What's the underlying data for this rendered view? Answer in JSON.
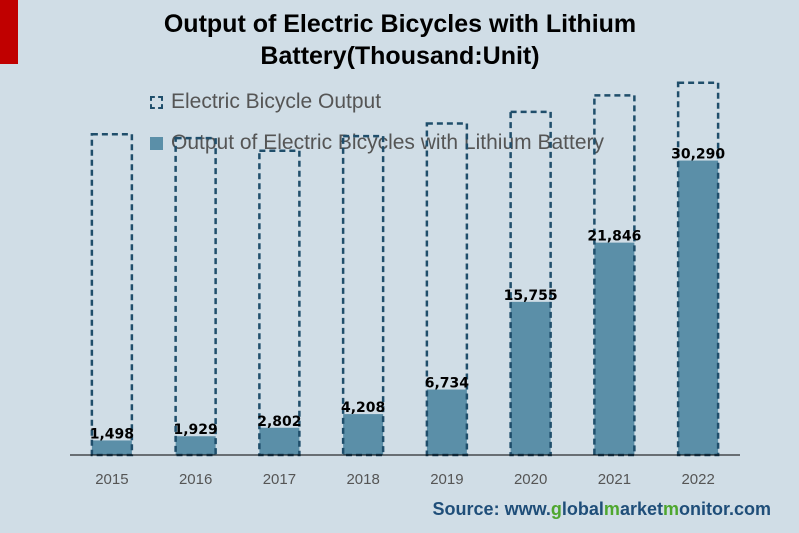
{
  "title": "Output of Electric Bicycles with Lithium Battery(Thousand:Unit)",
  "source": {
    "prefix": "Source: www.",
    "parts": [
      {
        "text": "g",
        "highlight": true
      },
      {
        "text": "lobal",
        "highlight": false
      },
      {
        "text": "m",
        "highlight": true
      },
      {
        "text": "arket",
        "highlight": false
      },
      {
        "text": "m",
        "highlight": true
      },
      {
        "text": "onitor.com",
        "highlight": false
      }
    ]
  },
  "colors": {
    "accent": "#c00000",
    "outline": "#1f4e6b",
    "fill": "#5b8fa8",
    "background": "#d0dde6",
    "source": "#1f4e79",
    "source_highlight": "#4ea72e"
  },
  "chart_data": {
    "type": "bar",
    "categories": [
      "2015",
      "2016",
      "2017",
      "2018",
      "2019",
      "2020",
      "2021",
      "2022"
    ],
    "series": [
      {
        "name": "Electric Bicycle Output",
        "values": [
          33000,
          32600,
          31300,
          32800,
          34100,
          35300,
          37000,
          38300
        ],
        "style": "dashed-outline"
      },
      {
        "name": "Output of Electric Bicycles with Lithium Battery",
        "values": [
          1498,
          1929,
          2802,
          4208,
          6734,
          15755,
          21846,
          30290
        ],
        "style": "solid",
        "labels": [
          "1,498",
          "1,929",
          "2,802",
          "4,208",
          "6,734",
          "15,755",
          "21,846",
          "30,290"
        ]
      }
    ],
    "ylim": [
      0,
      43000
    ],
    "grid": false,
    "legend": "top-left",
    "overlap": true
  }
}
